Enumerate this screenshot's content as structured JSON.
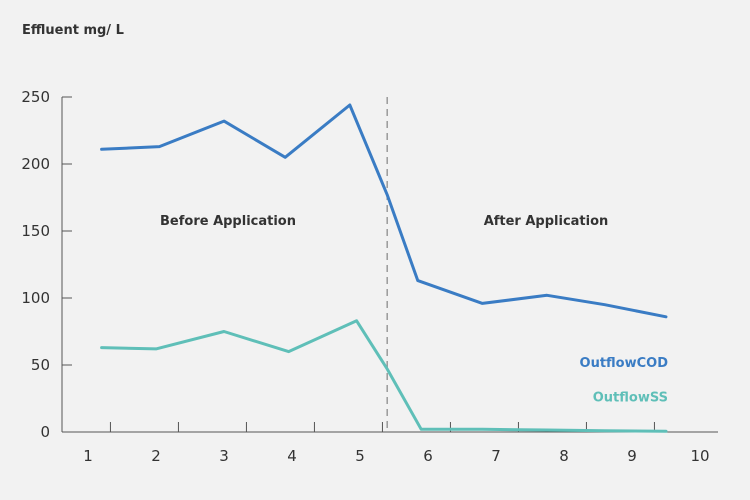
{
  "chart_data": {
    "type": "line",
    "ylabel": "Effluent mg/ L",
    "xlabel": "",
    "title": "",
    "x_ticks": [
      1,
      2,
      3,
      4,
      5,
      6,
      7,
      8,
      9,
      10
    ],
    "y_ticks": [
      0,
      50,
      100,
      150,
      200,
      250
    ],
    "xlim": [
      1,
      10
    ],
    "ylim": [
      0,
      250
    ],
    "grid": false,
    "divider_x": 5.4,
    "annotations": {
      "before": "Before Application",
      "after": "After Application"
    },
    "series": [
      {
        "name": "OutflowCOD",
        "color": "#3a7cc4",
        "points": [
          {
            "x": 1.2,
            "y": 211
          },
          {
            "x": 2.05,
            "y": 213
          },
          {
            "x": 3.0,
            "y": 232
          },
          {
            "x": 3.9,
            "y": 205
          },
          {
            "x": 4.85,
            "y": 244
          },
          {
            "x": 5.4,
            "y": 177
          },
          {
            "x": 5.85,
            "y": 113
          },
          {
            "x": 6.8,
            "y": 96
          },
          {
            "x": 7.75,
            "y": 102
          },
          {
            "x": 8.6,
            "y": 95
          },
          {
            "x": 9.5,
            "y": 86
          }
        ]
      },
      {
        "name": "OutflowSS",
        "color": "#5fbfb8",
        "points": [
          {
            "x": 1.2,
            "y": 63
          },
          {
            "x": 2.0,
            "y": 62
          },
          {
            "x": 3.0,
            "y": 75
          },
          {
            "x": 3.95,
            "y": 60
          },
          {
            "x": 4.95,
            "y": 83
          },
          {
            "x": 5.4,
            "y": 47
          },
          {
            "x": 5.9,
            "y": 2
          },
          {
            "x": 6.8,
            "y": 2
          },
          {
            "x": 7.75,
            "y": 1.5
          },
          {
            "x": 8.6,
            "y": 1
          },
          {
            "x": 9.5,
            "y": 0.5
          }
        ]
      }
    ]
  }
}
